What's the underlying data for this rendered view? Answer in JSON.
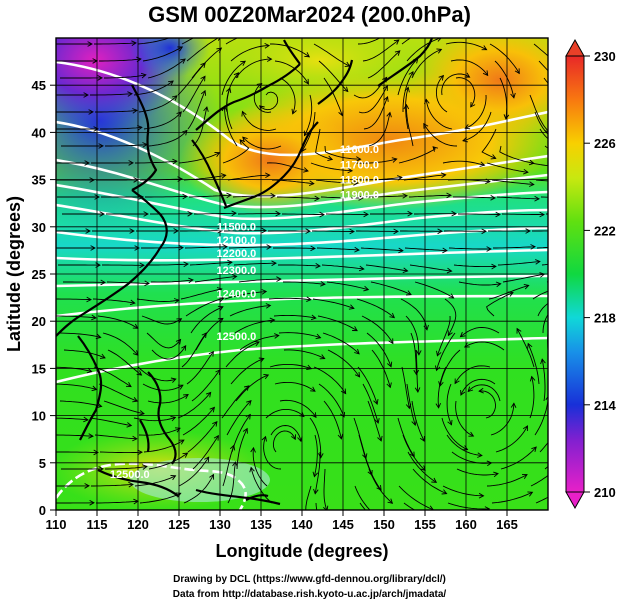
{
  "title": "GSM 00Z20Mar2024 (200.0hPa)",
  "map": {
    "xlabel": "Longitude (degrees)",
    "ylabel": "Latitude  (degrees)",
    "x_ticks": [
      "110",
      "115",
      "120",
      "125",
      "130",
      "135",
      "140",
      "145",
      "150",
      "155",
      "160",
      "165"
    ],
    "y_ticks": [
      "0",
      "5",
      "10",
      "15",
      "20",
      "25",
      "30",
      "35",
      "40",
      "45"
    ],
    "lon_range": [
      110,
      170
    ],
    "lat_range": [
      0,
      50
    ],
    "colorbar": {
      "ticks": [
        "210",
        "214",
        "218",
        "222",
        "226",
        "230"
      ],
      "min": 210,
      "max": 230
    },
    "contour_labels": [
      {
        "text": "11900.0",
        "lon": 147,
        "lat": 33.0
      },
      {
        "text": "11800.0",
        "lon": 147,
        "lat": 34.6
      },
      {
        "text": "11700.0",
        "lon": 147,
        "lat": 36.2
      },
      {
        "text": "11600.0",
        "lon": 147,
        "lat": 37.8
      },
      {
        "text": "11500.0",
        "lon": 132,
        "lat": 29.6
      },
      {
        "text": "12100.0",
        "lon": 132,
        "lat": 28.2
      },
      {
        "text": "12200.0",
        "lon": 132,
        "lat": 26.8
      },
      {
        "text": "12300.0",
        "lon": 132,
        "lat": 25.0
      },
      {
        "text": "12400.0",
        "lon": 132,
        "lat": 22.5
      },
      {
        "text": "12500.0",
        "lon": 132,
        "lat": 18.0
      },
      {
        "text": "12500.0",
        "lon": 119,
        "lat": 3.4
      }
    ]
  },
  "credits": {
    "line1": "Drawing by DCL (https://www.gfd-dennou.org/library/dcl/)",
    "line2": "Data from http://database.rish.kyoto-u.ac.jp/arch/jmadata/"
  }
}
